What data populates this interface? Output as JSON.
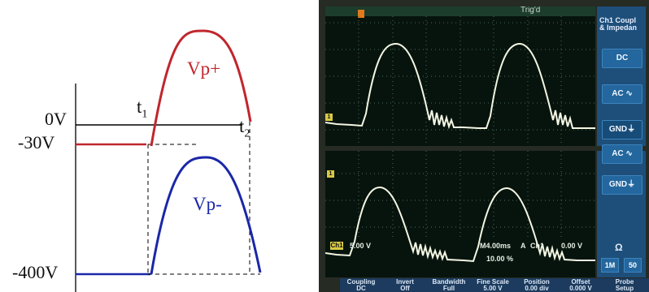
{
  "diagram": {
    "labels": {
      "zero": "0V",
      "minus30": "-30V",
      "minus400": "-400V",
      "t1_base": "t",
      "t1_sub": "1",
      "t2_base": "t",
      "t2_sub": "2",
      "vp_plus": "Vp+",
      "vp_minus": "Vp-"
    },
    "colors": {
      "vp_plus": "#c0262d",
      "vp_minus": "#1a27a8",
      "axis": "#000000"
    }
  },
  "scope": {
    "top_trig": "Trig'd",
    "side_panel": {
      "title_line1": "Ch1 Coupl",
      "title_line2": "& Impedan",
      "dc": "DC",
      "ac": "AC",
      "gnd": "GND",
      "ac2": "AC",
      "gnd2": "GND",
      "ohm": "Ω",
      "one_m": "1M",
      "fifty": "50"
    },
    "readout": {
      "ch1_badge": "Ch1",
      "ch1_scale": "5.00 V",
      "timebase": "M4.00ms",
      "trigger_mode": "A",
      "trigger_source": "Ch1",
      "trigger_level": "0.00 V",
      "trigger_pos": "10.00 %"
    },
    "bottom_menu": [
      {
        "top": "Coupling",
        "bottom": "DC"
      },
      {
        "top": "Invert",
        "bottom": "Off"
      },
      {
        "top": "Bandwidth",
        "bottom": "Full"
      },
      {
        "top": "Fine Scale",
        "bottom": "5.00 V"
      },
      {
        "top": "Position",
        "bottom": "0.00 div"
      },
      {
        "top": "Offset",
        "bottom": "0.000 V"
      },
      {
        "top": "Probe",
        "bottom": "Setup"
      }
    ],
    "colors": {
      "screen_bg": "#07140d",
      "trace": "#f4f6e4",
      "graticule": "#4c6a57",
      "panel": "#1e4f7a"
    }
  }
}
